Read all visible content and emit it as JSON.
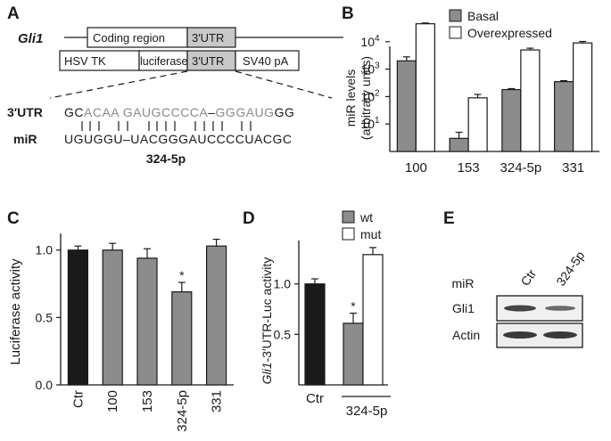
{
  "panels": {
    "A": {
      "letter": "A",
      "gene_label": "Gli1",
      "coding_region": "Coding region",
      "utr": "3′UTR",
      "hsv_tk": "HSV TK",
      "luciferase": "luciferase",
      "sv40": "SV40 pA",
      "utr_row_label": "3′UTR",
      "mir_row_label": "miR",
      "utr_seq": [
        {
          "t": "GC",
          "c": "#1a1a1a"
        },
        {
          "t": "ACAA GAUGCCCCA",
          "c": "#8a8a8a"
        },
        {
          "t": "–",
          "c": "#1a1a1a"
        },
        {
          "t": "GGGAUG",
          "c": "#8a8a8a"
        },
        {
          "t": "GG",
          "c": "#1a1a1a"
        }
      ],
      "mir_seq": "UGUGGU–UACGGGAUCCCCUACGC",
      "mir_name": "324-5p"
    },
    "B": {
      "letter": "B",
      "ylabel_1": "miR levels",
      "ylabel_2": "(arbitrary units)",
      "legend": [
        "Basal",
        "Overexpressed"
      ]
    },
    "C": {
      "letter": "C",
      "ylabel": "Luciferase activity"
    },
    "D": {
      "letter": "D",
      "ylabel_italic": "Gli1",
      "ylabel_rest": "-3′UTR-Luc activity",
      "legend": [
        "wt",
        "mut"
      ]
    },
    "E": {
      "letter": "E",
      "mir_label": "miR",
      "lanes": [
        "Ctr",
        "324-5p"
      ],
      "rows": [
        "Gli1",
        "Actin"
      ]
    }
  },
  "colors": {
    "dark": "#1a1a1a",
    "gray": "#8c8c8c",
    "light": "#ffffff",
    "utr_box": "#c8c8c8"
  },
  "chart_data": [
    {
      "panel": "B",
      "type": "bar",
      "scale": "log",
      "categories": [
        "100",
        "153",
        "324-5p",
        "331"
      ],
      "series": [
        {
          "name": "Basal",
          "values": [
            2000,
            3,
            180,
            350
          ],
          "errors": [
            800,
            2,
            15,
            30
          ]
        },
        {
          "name": "Overexpressed",
          "values": [
            45000,
            90,
            5000,
            9000
          ],
          "errors": [
            3000,
            30,
            800,
            1200
          ]
        }
      ],
      "ylim": [
        1,
        100000
      ],
      "yticks": [
        10,
        100,
        1000,
        10000
      ],
      "ytick_labels": [
        "10^1",
        "10^2",
        "10^3",
        "10^4"
      ]
    },
    {
      "panel": "C",
      "type": "bar",
      "categories": [
        "Ctr",
        "100",
        "153",
        "324-5p",
        "331"
      ],
      "values": [
        1.0,
        1.0,
        0.94,
        0.69,
        1.03
      ],
      "errors": [
        0.03,
        0.05,
        0.07,
        0.07,
        0.05
      ],
      "bar_colors": [
        "#1a1a1a",
        "#8c8c8c",
        "#8c8c8c",
        "#8c8c8c",
        "#8c8c8c"
      ],
      "significance": [
        {
          "index": 3,
          "label": "*"
        }
      ],
      "ylim": [
        0,
        1.15
      ],
      "yticks": [
        0.0,
        0.5,
        1.0
      ],
      "ytick_labels": [
        "0.0",
        "0.5",
        "1.0"
      ]
    },
    {
      "panel": "D",
      "type": "bar",
      "categories": [
        "Ctr",
        "324-5p"
      ],
      "group_label": "324-5p",
      "bars": [
        {
          "label": "Ctr",
          "value": 1.0,
          "error": 0.05,
          "color": "#1a1a1a"
        },
        {
          "label": "wt",
          "value": 0.61,
          "error": 0.1,
          "color": "#8c8c8c"
        },
        {
          "label": "mut",
          "value": 1.29,
          "error": 0.07,
          "color": "#ffffff"
        }
      ],
      "significance": [
        {
          "index": 1,
          "label": "*"
        }
      ],
      "ylim": [
        0,
        1.5
      ],
      "yticks": [
        0.5,
        1.0
      ],
      "ytick_labels": [
        "0.5",
        "1.0"
      ]
    }
  ]
}
